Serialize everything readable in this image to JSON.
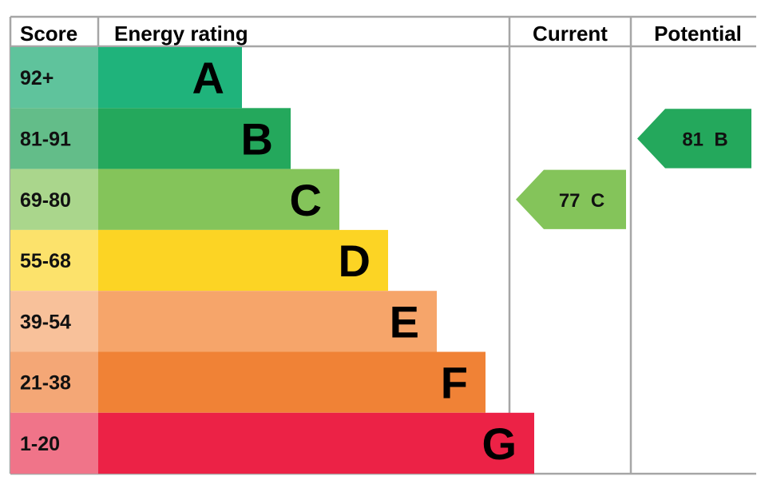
{
  "chart_data": {
    "type": "table",
    "headers": {
      "score": "Score",
      "rating": "Energy rating",
      "current": "Current",
      "potential": "Potential"
    },
    "bands": [
      {
        "letter": "A",
        "range": "92+",
        "bar_color": "#1fb37b",
        "score_color": "#5fc39c"
      },
      {
        "letter": "B",
        "range": "81-91",
        "bar_color": "#24a85c",
        "score_color": "#63bd89"
      },
      {
        "letter": "C",
        "range": "69-80",
        "bar_color": "#84c45a",
        "score_color": "#aad68c"
      },
      {
        "letter": "D",
        "range": "55-68",
        "bar_color": "#fcd424",
        "score_color": "#fce26b"
      },
      {
        "letter": "E",
        "range": "39-54",
        "bar_color": "#f6a56a",
        "score_color": "#f8c19a"
      },
      {
        "letter": "F",
        "range": "21-38",
        "bar_color": "#f08236",
        "score_color": "#f4a776"
      },
      {
        "letter": "G",
        "range": "1-20",
        "bar_color": "#ec2246",
        "score_color": "#f07489"
      }
    ],
    "current": {
      "value": 77,
      "band": "C",
      "color": "#84c45a"
    },
    "potential": {
      "value": 81,
      "band": "B",
      "color": "#24a85c"
    },
    "grid_color": "#a6a6a6"
  }
}
